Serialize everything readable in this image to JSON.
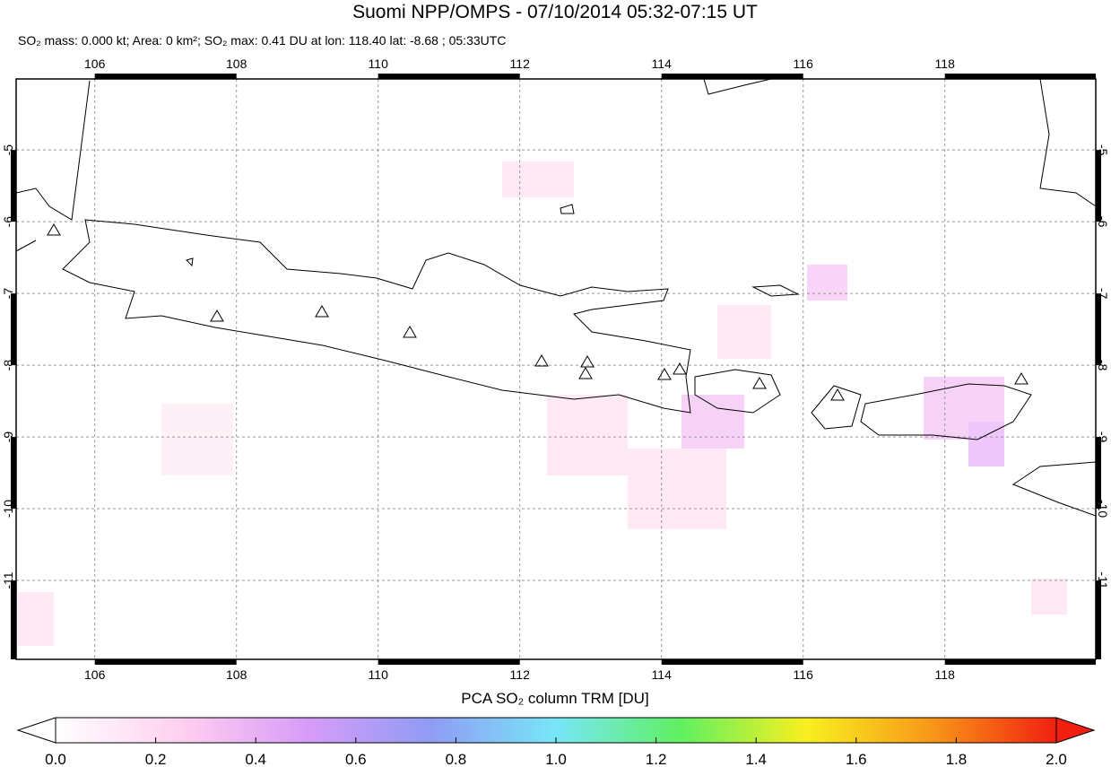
{
  "map": {
    "title": "Suomi NPP/OMPS - 07/10/2014 05:32-07:15 UT",
    "subtitle": "SO₂ mass: 0.000 kt; Area: 0 km²; SO₂ max: 0.41 DU at lon: 118.40 lat: -8.68 ; 05:33UTC",
    "xlim": [
      104.89,
      120.13
    ],
    "ylim": [
      -12.1,
      -4.01
    ],
    "lon_ticks": [
      106,
      108,
      110,
      112,
      114,
      116,
      118
    ],
    "lat_ticks": [
      -5,
      -6,
      -7,
      -8,
      -9,
      -10,
      -11
    ],
    "grid": true,
    "colorbar": {
      "label": "PCA SO₂ column TRM [DU]",
      "range": [
        0,
        2
      ],
      "colors": [
        "#ffffff",
        "#ffd0f0",
        "#d89cf8",
        "#8f9cf4",
        "#78e6f8",
        "#60f060",
        "#f8f020",
        "#f89818",
        "#f02010"
      ],
      "ticks": [
        {
          "value": 0,
          "label": "0.0"
        },
        {
          "value": 0.2,
          "label": "0.2"
        },
        {
          "value": 0.4,
          "label": "0.4"
        },
        {
          "value": 0.6,
          "label": "0.6"
        },
        {
          "value": 0.8,
          "label": "0.8"
        },
        {
          "value": 1,
          "label": "1.0"
        },
        {
          "value": 1.2,
          "label": "1.2"
        },
        {
          "value": 1.4,
          "label": "1.4"
        },
        {
          "value": 1.6,
          "label": "1.6"
        },
        {
          "value": 1.8,
          "label": "1.8"
        },
        {
          "value": 2,
          "label": "2.0"
        }
      ]
    }
  }
}
